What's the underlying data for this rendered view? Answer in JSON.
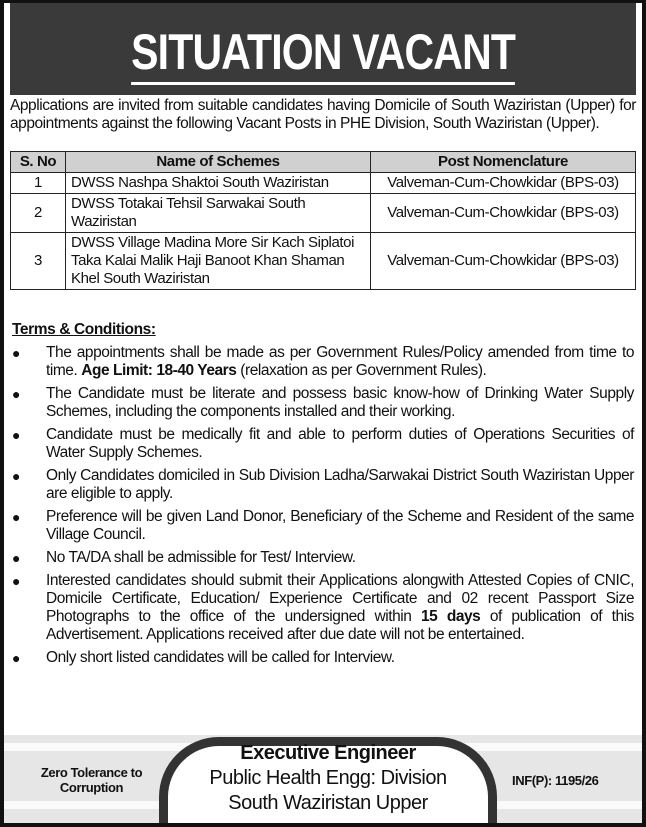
{
  "title": "SITUATION VACANT",
  "intro": "Applications are invited from suitable candidates having Domicile of South Waziristan (Upper) for appointments against the following Vacant Posts in PHE Division, South Waziristan (Upper).",
  "table": {
    "headers": [
      "S. No",
      "Name of Schemes",
      "Post Nomenclature"
    ],
    "rows": [
      {
        "sno": "1",
        "scheme": "DWSS Nashpa Shaktoi South Waziristan",
        "post": "Valveman-Cum-Chowkidar (BPS-03)"
      },
      {
        "sno": "2",
        "scheme": "DWSS Totakai Tehsil Sarwakai South Waziristan",
        "post": "Valveman-Cum-Chowkidar (BPS-03)"
      },
      {
        "sno": "3",
        "scheme": "DWSS Village Madina More Sir Kach Siplatoi Taka Kalai Malik Haji Banoot Khan Shaman Khel South Waziristan",
        "post": "Valveman-Cum-Chowkidar (BPS-03)"
      }
    ]
  },
  "terms": {
    "title": "Terms & Conditions:",
    "bullet": "●",
    "items": [
      {
        "a": "The appointments shall be made as per Government Rules/Policy amended from time to time. ",
        "b": "Age Limit: 18-40 Years",
        "c": " (relaxation as per Government Rules)."
      },
      {
        "a": "The Candidate must be literate and possess basic know-how of Drinking Water Supply Schemes, including the components installed and their working."
      },
      {
        "a": "Candidate must be medically fit and able to perform duties of Operations Securities of Water Supply Schemes."
      },
      {
        "a": "Only Candidates domiciled in Sub Division Ladha/Sarwakai District South Waziristan Upper are eligible to apply."
      },
      {
        "a": "Preference will be given Land Donor, Beneficiary of the Scheme and Resident of the same Village Council."
      },
      {
        "a": "No TA/DA shall be admissible for Test/ Interview."
      },
      {
        "a": "Interested candidates should submit their Applications alongwith Attested Copies of CNIC, Domicile Certificate, Education/ Experience Certificate and 02 recent Passport Size Photographs to the office of the undersigned within ",
        "b": "15 days",
        "c": " of publication of this Advertisement. Applications received after due date will not be entertained."
      },
      {
        "a": "Only short listed candidates will be called for Interview."
      }
    ]
  },
  "footer": {
    "left": "Zero Tolerance to Corruption",
    "designation": "Executive Engineer",
    "office1": "Public Health Engg: Division",
    "office2": "South Waziristan Upper",
    "ref": "INF(P): 1195/26"
  }
}
